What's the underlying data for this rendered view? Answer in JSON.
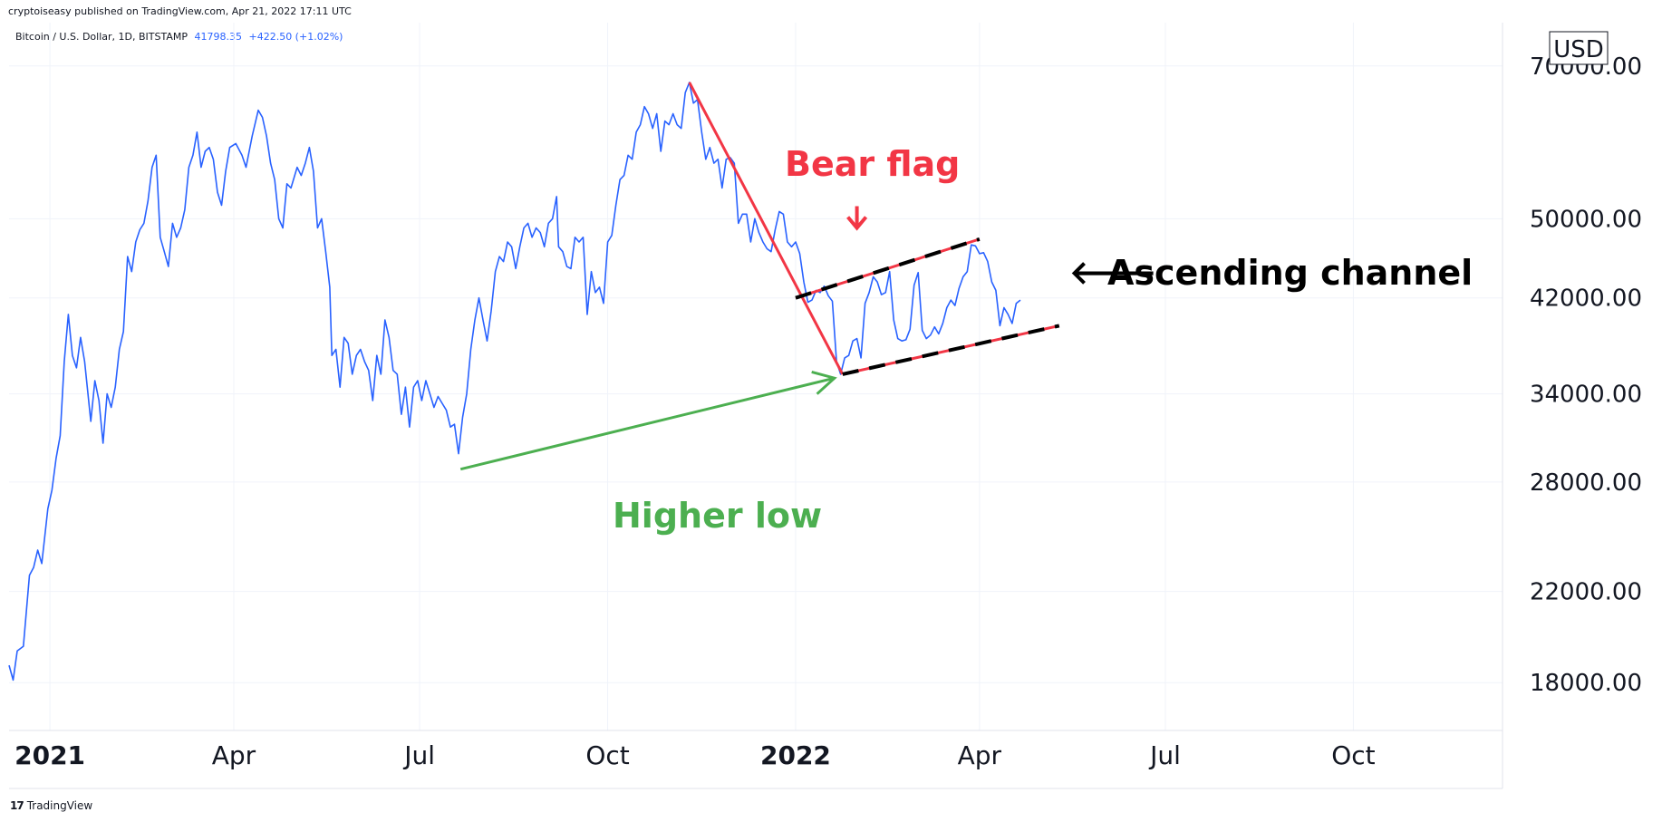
{
  "header": {
    "publish_text": "cryptoiseasy published on TradingView.com, Apr 21, 2022 17:11 UTC",
    "symbol": "Bitcoin / U.S. Dollar, 1D, BITSTAMP",
    "last_price": "41798.35",
    "change": "+422.50 (+1.02%)"
  },
  "footer": {
    "brand": "TradingView"
  },
  "colors": {
    "price_line": "#2962ff",
    "bear": "#f23645",
    "higher_low": "#4caf50",
    "channel_dash": "#000000",
    "grid": "#f0f3fa"
  },
  "chart_data": {
    "type": "line",
    "title": "",
    "currency_label": "USD",
    "ylabel": "",
    "xlabel": "",
    "y_scale": "log",
    "ylim": [
      16200,
      77000
    ],
    "xlim": [
      "2020-12-12",
      "2022-12-13"
    ],
    "y_ticks": [
      18000,
      22000,
      28000,
      34000,
      42000,
      50000,
      70000
    ],
    "y_tick_labels": [
      "18000.00",
      "22000.00",
      "28000.00",
      "34000.00",
      "42000.00",
      "50000.00",
      "70000.00"
    ],
    "x_ticks": [
      {
        "date": "2021-01-01",
        "label": "2021",
        "bold": true
      },
      {
        "date": "2021-04-01",
        "label": "Apr",
        "bold": false
      },
      {
        "date": "2021-07-01",
        "label": "Jul",
        "bold": false
      },
      {
        "date": "2021-10-01",
        "label": "Oct",
        "bold": false
      },
      {
        "date": "2022-01-01",
        "label": "2022",
        "bold": true
      },
      {
        "date": "2022-04-01",
        "label": "Apr",
        "bold": false
      },
      {
        "date": "2022-07-01",
        "label": "Jul",
        "bold": false
      },
      {
        "date": "2022-10-01",
        "label": "Oct",
        "bold": false
      }
    ],
    "grid": true,
    "series": [
      {
        "points": [
          [
            "2020-12-12",
            18700
          ],
          [
            "2020-12-14",
            18100
          ],
          [
            "2020-12-16",
            19300
          ],
          [
            "2020-12-19",
            19500
          ],
          [
            "2020-12-22",
            22800
          ],
          [
            "2020-12-24",
            23200
          ],
          [
            "2020-12-26",
            24100
          ],
          [
            "2020-12-28",
            23400
          ],
          [
            "2020-12-31",
            26400
          ],
          [
            "2021-01-02",
            27500
          ],
          [
            "2021-01-04",
            29500
          ],
          [
            "2021-01-06",
            31000
          ],
          [
            "2021-01-08",
            36500
          ],
          [
            "2021-01-10",
            40500
          ],
          [
            "2021-01-12",
            37000
          ],
          [
            "2021-01-14",
            36000
          ],
          [
            "2021-01-16",
            38500
          ],
          [
            "2021-01-18",
            36500
          ],
          [
            "2021-01-21",
            32000
          ],
          [
            "2021-01-23",
            35000
          ],
          [
            "2021-01-25",
            33500
          ],
          [
            "2021-01-27",
            30500
          ],
          [
            "2021-01-29",
            34000
          ],
          [
            "2021-01-31",
            33000
          ],
          [
            "2021-02-02",
            34500
          ],
          [
            "2021-02-04",
            37500
          ],
          [
            "2021-02-06",
            39000
          ],
          [
            "2021-02-08",
            46000
          ],
          [
            "2021-02-10",
            44500
          ],
          [
            "2021-02-12",
            47500
          ],
          [
            "2021-02-14",
            48800
          ],
          [
            "2021-02-16",
            49500
          ],
          [
            "2021-02-18",
            52000
          ],
          [
            "2021-02-20",
            56000
          ],
          [
            "2021-02-22",
            57500
          ],
          [
            "2021-02-24",
            48000
          ],
          [
            "2021-02-26",
            46500
          ],
          [
            "2021-02-28",
            45000
          ],
          [
            "2021-03-02",
            49500
          ],
          [
            "2021-03-04",
            48000
          ],
          [
            "2021-03-06",
            49000
          ],
          [
            "2021-03-08",
            51000
          ],
          [
            "2021-03-10",
            56000
          ],
          [
            "2021-03-12",
            57500
          ],
          [
            "2021-03-14",
            60500
          ],
          [
            "2021-03-16",
            56000
          ],
          [
            "2021-03-18",
            58000
          ],
          [
            "2021-03-20",
            58500
          ],
          [
            "2021-03-22",
            57000
          ],
          [
            "2021-03-24",
            53000
          ],
          [
            "2021-03-26",
            51500
          ],
          [
            "2021-03-28",
            55500
          ],
          [
            "2021-03-30",
            58500
          ],
          [
            "2021-04-02",
            59000
          ],
          [
            "2021-04-05",
            57500
          ],
          [
            "2021-04-07",
            56000
          ],
          [
            "2021-04-10",
            60000
          ],
          [
            "2021-04-13",
            63500
          ],
          [
            "2021-04-15",
            62500
          ],
          [
            "2021-04-17",
            60000
          ],
          [
            "2021-04-19",
            56500
          ],
          [
            "2021-04-21",
            54500
          ],
          [
            "2021-04-23",
            50000
          ],
          [
            "2021-04-25",
            49000
          ],
          [
            "2021-04-27",
            54000
          ],
          [
            "2021-04-29",
            53500
          ],
          [
            "2021-05-02",
            56000
          ],
          [
            "2021-05-04",
            55000
          ],
          [
            "2021-05-06",
            56500
          ],
          [
            "2021-05-08",
            58500
          ],
          [
            "2021-05-10",
            55500
          ],
          [
            "2021-05-12",
            49000
          ],
          [
            "2021-05-14",
            50000
          ],
          [
            "2021-05-16",
            46500
          ],
          [
            "2021-05-18",
            43000
          ],
          [
            "2021-05-19",
            37000
          ],
          [
            "2021-05-21",
            37500
          ],
          [
            "2021-05-23",
            34500
          ],
          [
            "2021-05-25",
            38500
          ],
          [
            "2021-05-27",
            38000
          ],
          [
            "2021-05-29",
            35500
          ],
          [
            "2021-05-31",
            37000
          ],
          [
            "2021-06-02",
            37500
          ],
          [
            "2021-06-04",
            36500
          ],
          [
            "2021-06-06",
            35800
          ],
          [
            "2021-06-08",
            33500
          ],
          [
            "2021-06-10",
            37000
          ],
          [
            "2021-06-12",
            35500
          ],
          [
            "2021-06-14",
            40000
          ],
          [
            "2021-06-16",
            38500
          ],
          [
            "2021-06-18",
            35800
          ],
          [
            "2021-06-20",
            35500
          ],
          [
            "2021-06-22",
            32500
          ],
          [
            "2021-06-24",
            34500
          ],
          [
            "2021-06-26",
            31600
          ],
          [
            "2021-06-28",
            34500
          ],
          [
            "2021-06-30",
            35000
          ],
          [
            "2021-07-02",
            33500
          ],
          [
            "2021-07-04",
            35000
          ],
          [
            "2021-07-06",
            34000
          ],
          [
            "2021-07-08",
            33000
          ],
          [
            "2021-07-10",
            33800
          ],
          [
            "2021-07-12",
            33300
          ],
          [
            "2021-07-14",
            32800
          ],
          [
            "2021-07-16",
            31600
          ],
          [
            "2021-07-18",
            31800
          ],
          [
            "2021-07-20",
            29800
          ],
          [
            "2021-07-22",
            32300
          ],
          [
            "2021-07-24",
            34000
          ],
          [
            "2021-07-26",
            37500
          ],
          [
            "2021-07-28",
            40000
          ],
          [
            "2021-07-30",
            42000
          ],
          [
            "2021-08-01",
            40000
          ],
          [
            "2021-08-03",
            38200
          ],
          [
            "2021-08-05",
            40800
          ],
          [
            "2021-08-07",
            44500
          ],
          [
            "2021-08-09",
            46000
          ],
          [
            "2021-08-11",
            45500
          ],
          [
            "2021-08-13",
            47500
          ],
          [
            "2021-08-15",
            47000
          ],
          [
            "2021-08-17",
            44800
          ],
          [
            "2021-08-19",
            47000
          ],
          [
            "2021-08-21",
            49000
          ],
          [
            "2021-08-23",
            49500
          ],
          [
            "2021-08-25",
            48000
          ],
          [
            "2021-08-27",
            49000
          ],
          [
            "2021-08-29",
            48500
          ],
          [
            "2021-08-31",
            47000
          ],
          [
            "2021-09-02",
            49500
          ],
          [
            "2021-09-04",
            50000
          ],
          [
            "2021-09-06",
            52500
          ],
          [
            "2021-09-07",
            47000
          ],
          [
            "2021-09-09",
            46500
          ],
          [
            "2021-09-11",
            45000
          ],
          [
            "2021-09-13",
            44800
          ],
          [
            "2021-09-15",
            48000
          ],
          [
            "2021-09-17",
            47500
          ],
          [
            "2021-09-19",
            48000
          ],
          [
            "2021-09-21",
            40500
          ],
          [
            "2021-09-23",
            44500
          ],
          [
            "2021-09-25",
            42500
          ],
          [
            "2021-09-27",
            43000
          ],
          [
            "2021-09-29",
            41500
          ],
          [
            "2021-10-01",
            47500
          ],
          [
            "2021-10-03",
            48200
          ],
          [
            "2021-10-05",
            51500
          ],
          [
            "2021-10-07",
            54500
          ],
          [
            "2021-10-09",
            55000
          ],
          [
            "2021-10-11",
            57500
          ],
          [
            "2021-10-13",
            57000
          ],
          [
            "2021-10-15",
            60500
          ],
          [
            "2021-10-17",
            61500
          ],
          [
            "2021-10-19",
            64000
          ],
          [
            "2021-10-21",
            63000
          ],
          [
            "2021-10-23",
            61000
          ],
          [
            "2021-10-25",
            63000
          ],
          [
            "2021-10-27",
            58000
          ],
          [
            "2021-10-29",
            62000
          ],
          [
            "2021-10-31",
            61500
          ],
          [
            "2021-11-02",
            63000
          ],
          [
            "2021-11-04",
            61500
          ],
          [
            "2021-11-06",
            61000
          ],
          [
            "2021-11-08",
            66000
          ],
          [
            "2021-11-10",
            67500
          ],
          [
            "2021-11-12",
            64500
          ],
          [
            "2021-11-14",
            65000
          ],
          [
            "2021-11-16",
            60500
          ],
          [
            "2021-11-18",
            57000
          ],
          [
            "2021-11-20",
            58500
          ],
          [
            "2021-11-22",
            56500
          ],
          [
            "2021-11-24",
            57000
          ],
          [
            "2021-11-26",
            53500
          ],
          [
            "2021-11-28",
            57000
          ],
          [
            "2021-11-30",
            57200
          ],
          [
            "2021-12-02",
            56500
          ],
          [
            "2021-12-04",
            49500
          ],
          [
            "2021-12-06",
            50500
          ],
          [
            "2021-12-08",
            50500
          ],
          [
            "2021-12-10",
            47500
          ],
          [
            "2021-12-12",
            50000
          ],
          [
            "2021-12-14",
            48500
          ],
          [
            "2021-12-16",
            47500
          ],
          [
            "2021-12-18",
            46800
          ],
          [
            "2021-12-20",
            46500
          ],
          [
            "2021-12-22",
            48800
          ],
          [
            "2021-12-24",
            50800
          ],
          [
            "2021-12-26",
            50500
          ],
          [
            "2021-12-28",
            47500
          ],
          [
            "2021-12-30",
            47000
          ],
          [
            "2022-01-01",
            47500
          ],
          [
            "2022-01-03",
            46300
          ],
          [
            "2022-01-05",
            43500
          ],
          [
            "2022-01-07",
            41600
          ],
          [
            "2022-01-09",
            41800
          ],
          [
            "2022-01-11",
            42700
          ],
          [
            "2022-01-13",
            42500
          ],
          [
            "2022-01-15",
            43100
          ],
          [
            "2022-01-17",
            42200
          ],
          [
            "2022-01-19",
            41700
          ],
          [
            "2022-01-21",
            36500
          ],
          [
            "2022-01-23",
            35500
          ],
          [
            "2022-01-25",
            36800
          ],
          [
            "2022-01-27",
            37000
          ],
          [
            "2022-01-29",
            38200
          ],
          [
            "2022-01-31",
            38400
          ],
          [
            "2022-02-02",
            36800
          ],
          [
            "2022-02-04",
            41500
          ],
          [
            "2022-02-06",
            42500
          ],
          [
            "2022-02-08",
            44000
          ],
          [
            "2022-02-10",
            43500
          ],
          [
            "2022-02-12",
            42300
          ],
          [
            "2022-02-14",
            42500
          ],
          [
            "2022-02-16",
            44500
          ],
          [
            "2022-02-18",
            40000
          ],
          [
            "2022-02-20",
            38400
          ],
          [
            "2022-02-22",
            38200
          ],
          [
            "2022-02-24",
            38300
          ],
          [
            "2022-02-26",
            39200
          ],
          [
            "2022-02-28",
            43200
          ],
          [
            "2022-03-02",
            44400
          ],
          [
            "2022-03-04",
            39100
          ],
          [
            "2022-03-06",
            38400
          ],
          [
            "2022-03-08",
            38700
          ],
          [
            "2022-03-10",
            39400
          ],
          [
            "2022-03-12",
            38800
          ],
          [
            "2022-03-14",
            39700
          ],
          [
            "2022-03-16",
            41100
          ],
          [
            "2022-03-18",
            41800
          ],
          [
            "2022-03-20",
            41300
          ],
          [
            "2022-03-22",
            42900
          ],
          [
            "2022-03-24",
            44000
          ],
          [
            "2022-03-26",
            44500
          ],
          [
            "2022-03-28",
            47200
          ],
          [
            "2022-03-30",
            47100
          ],
          [
            "2022-04-01",
            46300
          ],
          [
            "2022-04-03",
            46400
          ],
          [
            "2022-04-05",
            45500
          ],
          [
            "2022-04-07",
            43500
          ],
          [
            "2022-04-09",
            42700
          ],
          [
            "2022-04-11",
            39500
          ],
          [
            "2022-04-13",
            41100
          ],
          [
            "2022-04-15",
            40500
          ],
          [
            "2022-04-17",
            39700
          ],
          [
            "2022-04-19",
            41500
          ],
          [
            "2022-04-21",
            41798
          ]
        ]
      }
    ],
    "annotations": {
      "bear_flag": {
        "text": "Bear flag"
      },
      "higher_low": {
        "text": "Higher low"
      },
      "ascending_channel": {
        "text": "Ascending channel",
        "prefix": "🡐"
      }
    },
    "drawn_lines": {
      "flagpole": [
        [
          "2021-11-10",
          67500
        ],
        [
          "2022-01-24",
          35500
        ]
      ],
      "channel_upper": [
        [
          "2022-01-01",
          42000
        ],
        [
          "2022-04-01",
          47800
        ]
      ],
      "channel_lower": [
        [
          "2022-01-24",
          35500
        ],
        [
          "2022-05-10",
          39500
        ]
      ],
      "higher_low_arrow": [
        [
          "2021-07-21",
          28800
        ],
        [
          "2022-01-20",
          35200
        ]
      ],
      "bear_flag_arrow_at": [
        "2022-01-31",
        48800
      ]
    }
  }
}
